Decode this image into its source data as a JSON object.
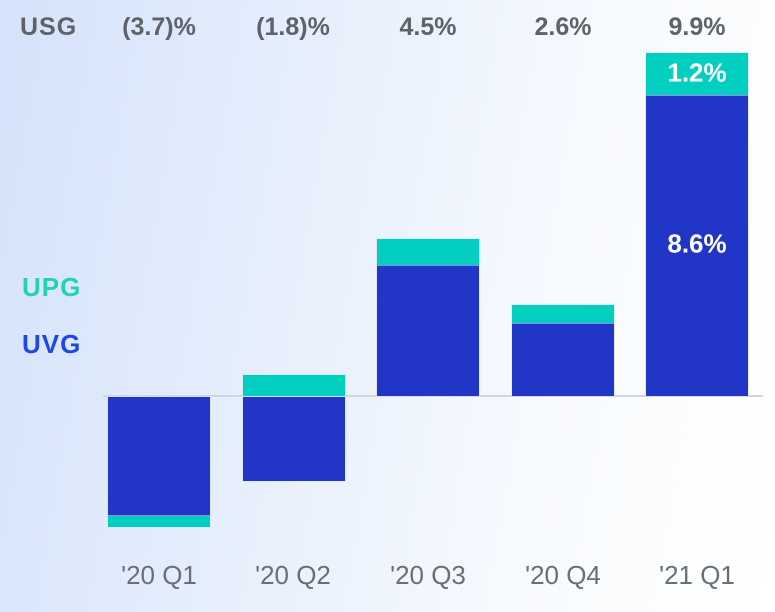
{
  "chart_data": {
    "type": "bar",
    "stacked": true,
    "title": "",
    "usg_label": "USG",
    "categories": [
      "'20 Q1",
      "'20 Q2",
      "'20 Q3",
      "'20 Q4",
      "'21 Q1"
    ],
    "usg_values": [
      "(3.7)%",
      "(1.8)%",
      "4.5%",
      "2.6%",
      "9.9%"
    ],
    "series": [
      {
        "name": "UPG",
        "color": "#02cfc0",
        "values": [
          -0.3,
          0.6,
          0.75,
          0.5,
          1.2
        ]
      },
      {
        "name": "UVG",
        "color": "#2135c7",
        "values": [
          -3.4,
          -2.4,
          3.75,
          2.1,
          8.6
        ]
      }
    ],
    "inbar_labels": {
      "upg": "1.2%",
      "uvg": "8.6%"
    },
    "legend": {
      "upg": "UPG",
      "uvg": "UVG",
      "upg_text_color": "#21d4ae",
      "uvg_text_color": "#1e48e0"
    },
    "axis": {
      "baseline_value": 0,
      "axis_line_color": "#d2d6dc"
    },
    "layout_hint": "stacked bars around zero baseline; positive UPG on top of UVG, negatives below axis"
  }
}
